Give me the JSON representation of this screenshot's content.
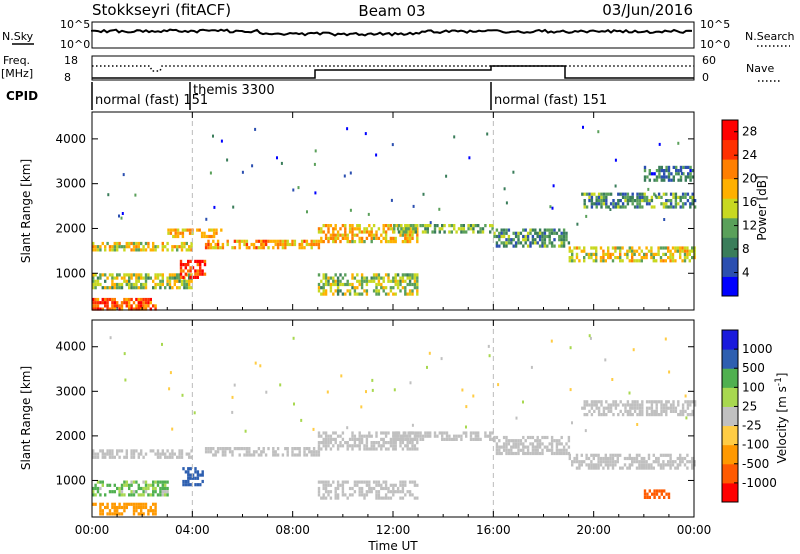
{
  "header": {
    "station": "Stokkseyri (fitACF)",
    "beam": "Beam 03",
    "date": "03/Jun/2016"
  },
  "top_panels": {
    "nsky_label": "N.Sky",
    "nsearch_label": "N.Search",
    "freq_label_1": "Freq.",
    "freq_label_2": "[MHz]",
    "nave_label": "Nave",
    "cpid_label": "CPID",
    "noise_ticks_left": [
      "10^5",
      "10^0"
    ],
    "noise_ticks_right": [
      "10^5",
      "10^0"
    ],
    "freq_ticks": [
      "18",
      "8"
    ],
    "nave_ticks": [
      "60",
      "0"
    ]
  },
  "cpid_segments": [
    {
      "label": "normal (fast) 151",
      "start_h": 0
    },
    {
      "label": "themis 3300",
      "start_h": 4
    },
    {
      "label": "normal (fast) 151",
      "start_h": 16
    }
  ],
  "colors": {
    "power": [
      "#0000ff",
      "#2b4fb0",
      "#3a7d5a",
      "#5aa05a",
      "#c8d820",
      "#ffb000",
      "#ff7f00",
      "#ff3000",
      "#ff0000"
    ],
    "velocity": [
      "#ff0000",
      "#ff5a00",
      "#ff9900",
      "#ffcc44",
      "#c0c0c0",
      "#a8d850",
      "#50b050",
      "#2e5fb0",
      "#1a1adc"
    ]
  },
  "chart_data": [
    {
      "type": "heatmap",
      "title": "",
      "xlabel": "",
      "ylabel": "Slant Range [km]",
      "xlim_hours": [
        0,
        24
      ],
      "ylim_km": [
        180,
        4600
      ],
      "x_ticks": [
        "00:00",
        "04:00",
        "08:00",
        "12:00",
        "16:00",
        "20:00",
        "00:00"
      ],
      "y_ticks": [
        "1000",
        "2000",
        "3000",
        "4000"
      ],
      "y_tick_values": [
        1000,
        2000,
        3000,
        4000
      ],
      "colorbar": {
        "label": "Power [dB]",
        "ticks": [
          "4",
          "8",
          "12",
          "16",
          "20",
          "24",
          "28"
        ],
        "range": [
          0,
          30
        ]
      },
      "echo_bands": [
        {
          "t0": 0,
          "t1": 4,
          "r0": 1500,
          "r1": 1700,
          "p": 16
        },
        {
          "t0": 3,
          "t1": 5.2,
          "r0": 1850,
          "r1": 2000,
          "p": 18
        },
        {
          "t0": 4.5,
          "t1": 9,
          "r0": 1550,
          "r1": 1750,
          "p": 20
        },
        {
          "t0": 9,
          "t1": 13,
          "r0": 1700,
          "r1": 2100,
          "p": 18
        },
        {
          "t0": 12,
          "t1": 16,
          "r0": 1900,
          "r1": 2100,
          "p": 12
        },
        {
          "t0": 16,
          "t1": 19,
          "r0": 1600,
          "r1": 2000,
          "p": 10
        },
        {
          "t0": 19,
          "t1": 24,
          "r0": 1300,
          "r1": 1600,
          "p": 16
        },
        {
          "t0": 19.5,
          "t1": 24,
          "r0": 2500,
          "r1": 2800,
          "p": 10
        },
        {
          "t0": 0,
          "t1": 4,
          "r0": 700,
          "r1": 1000,
          "p": 14
        },
        {
          "t0": 3.5,
          "t1": 4.5,
          "r0": 900,
          "r1": 1300,
          "p": 26
        },
        {
          "t0": 0,
          "t1": 2.5,
          "r0": 200,
          "r1": 450,
          "p": 24
        },
        {
          "t0": 9,
          "t1": 13,
          "r0": 500,
          "r1": 1000,
          "p": 14
        },
        {
          "t0": 22,
          "t1": 24,
          "r0": 3100,
          "r1": 3400,
          "p": 8
        }
      ]
    },
    {
      "type": "heatmap",
      "title": "",
      "xlabel": "Time UT",
      "ylabel": "Slant Range [km]",
      "xlim_hours": [
        0,
        24
      ],
      "ylim_km": [
        180,
        4600
      ],
      "x_ticks": [
        "00:00",
        "04:00",
        "08:00",
        "12:00",
        "16:00",
        "20:00",
        "00:00"
      ],
      "y_ticks": [
        "1000",
        "2000",
        "3000",
        "4000"
      ],
      "y_tick_values": [
        1000,
        2000,
        3000,
        4000
      ],
      "colorbar": {
        "label": "Velocity [m s",
        "label_sup": "-1",
        "label_end": "]",
        "ticks": [
          "-1000",
          "-500",
          "-100",
          "-25",
          "25",
          "100",
          "500",
          "1000"
        ]
      },
      "echo_bands": [
        {
          "t0": 0,
          "t1": 4,
          "r0": 1500,
          "r1": 1700,
          "v": 0
        },
        {
          "t0": 4.5,
          "t1": 9,
          "r0": 1550,
          "r1": 1750,
          "v": 0
        },
        {
          "t0": 9,
          "t1": 13,
          "r0": 1700,
          "r1": 2100,
          "v": 0
        },
        {
          "t0": 12,
          "t1": 16,
          "r0": 1900,
          "r1": 2100,
          "v": 0
        },
        {
          "t0": 16,
          "t1": 19,
          "r0": 1600,
          "r1": 2000,
          "v": 0
        },
        {
          "t0": 19,
          "t1": 24,
          "r0": 1300,
          "r1": 1600,
          "v": 0
        },
        {
          "t0": 19.5,
          "t1": 24,
          "r0": 2500,
          "r1": 2800,
          "v": 0
        },
        {
          "t0": 0,
          "t1": 3,
          "r0": 700,
          "r1": 1000,
          "v": 150
        },
        {
          "t0": 3.6,
          "t1": 4.4,
          "r0": 900,
          "r1": 1300,
          "v": 800
        },
        {
          "t0": 0,
          "t1": 2.5,
          "r0": 250,
          "r1": 500,
          "v": -300
        },
        {
          "t0": 9,
          "t1": 13,
          "r0": 600,
          "r1": 1000,
          "v": 0
        },
        {
          "t0": 22,
          "t1": 23,
          "r0": 600,
          "r1": 800,
          "v": -800
        }
      ]
    }
  ]
}
